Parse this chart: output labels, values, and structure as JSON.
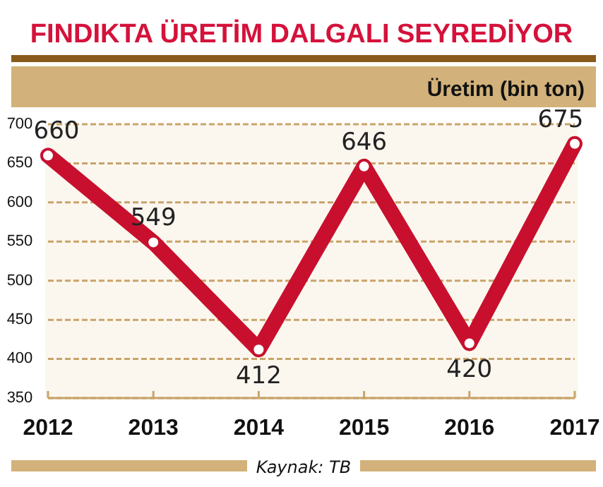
{
  "chart_data": {
    "type": "line",
    "title": "FINDIKTA ÜRETİM DALGALI SEYREDİYOR",
    "ylabel": "Üretim (bin ton)",
    "annotations": [
      "Kaynak: TB"
    ],
    "categories": [
      "2012",
      "2013",
      "2014",
      "2015",
      "2016",
      "2017"
    ],
    "series": [
      {
        "color": "#c8102e",
        "values": [
          660,
          549,
          412,
          646,
          420,
          675
        ]
      }
    ],
    "ylim": [
      350,
      700
    ],
    "yticks": [
      350,
      400,
      450,
      500,
      550,
      600,
      650,
      700
    ],
    "grid": "y",
    "marker": "circle",
    "line_style": "solid",
    "data_labels": true
  }
}
